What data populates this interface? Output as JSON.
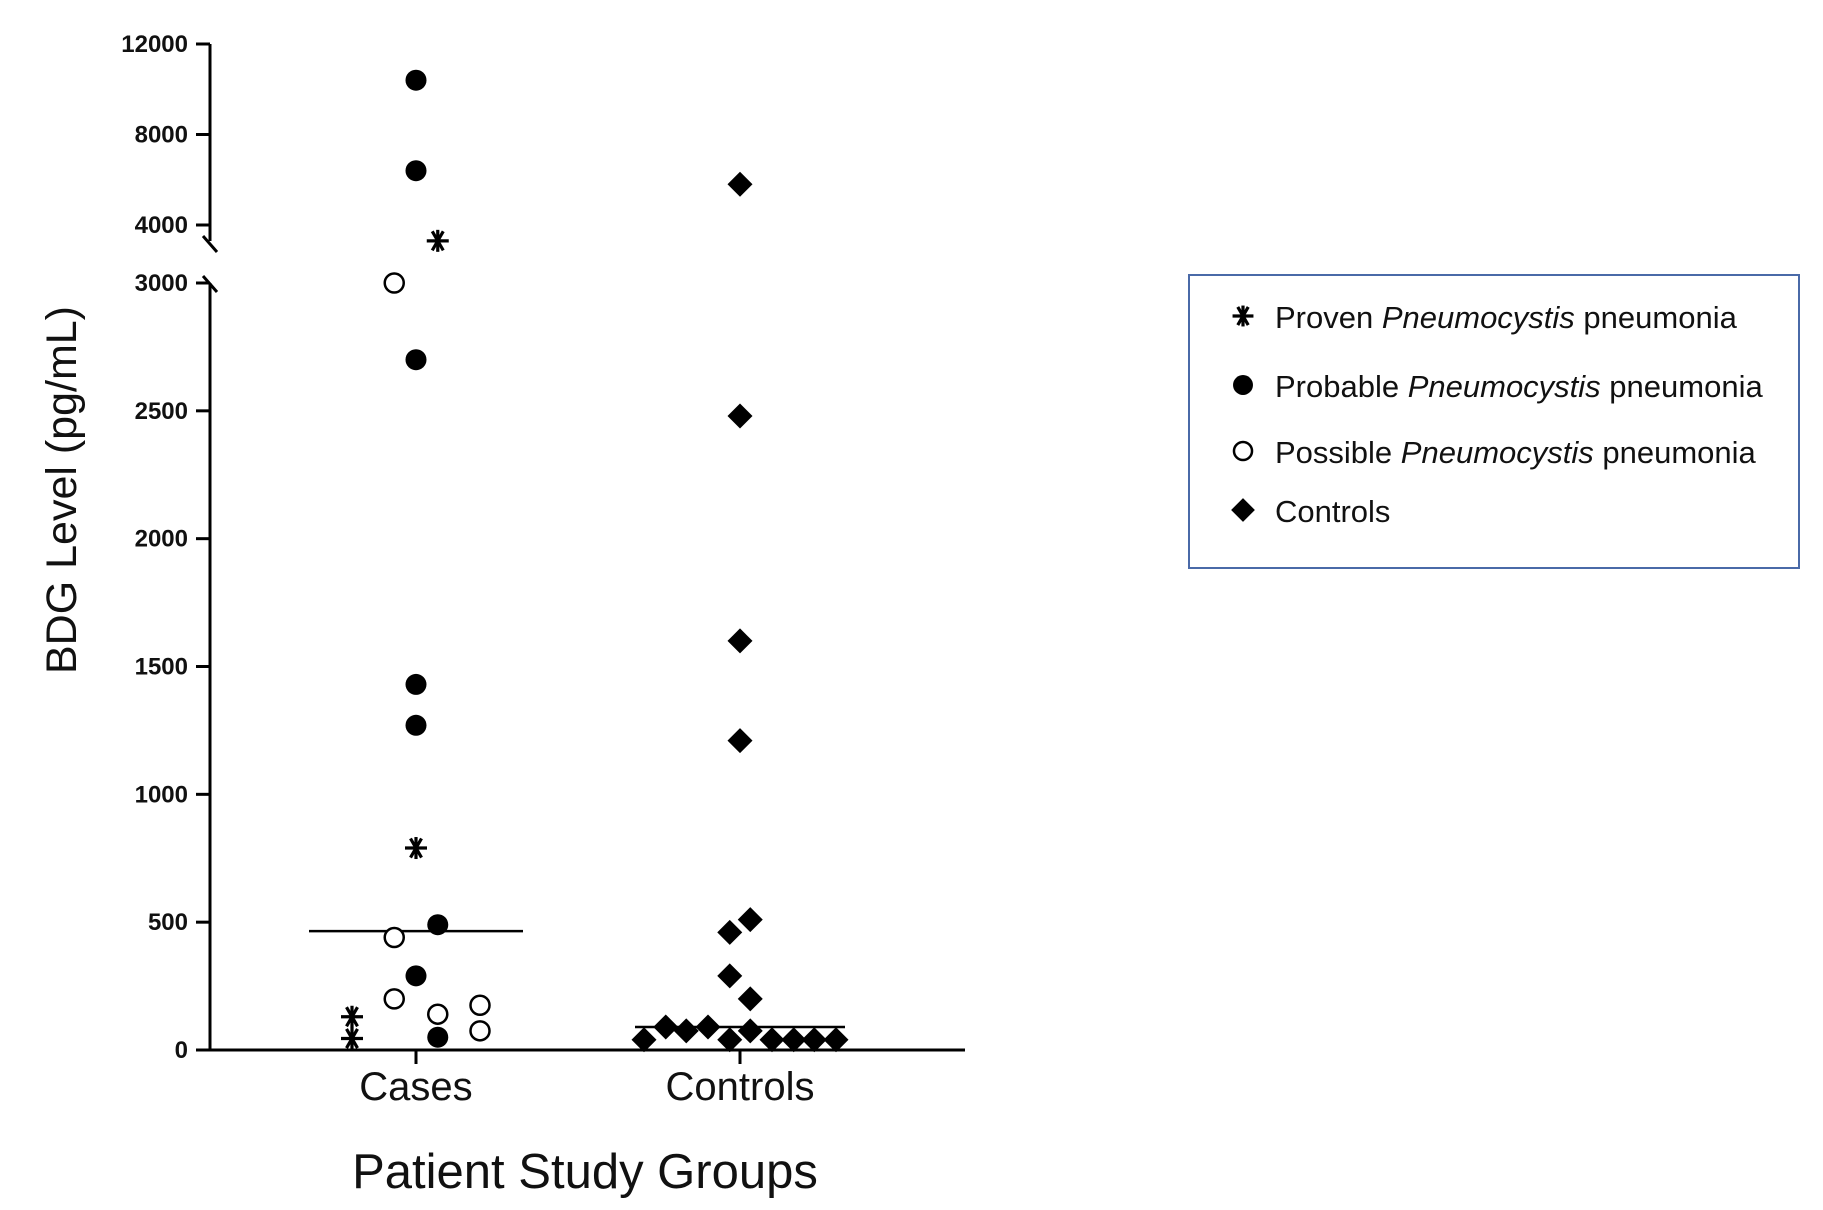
{
  "chart_data": {
    "type": "scatter",
    "title": "",
    "xlabel": "Patient Study Groups",
    "ylabel": "BDG Level (pg/mL)",
    "categories": [
      "Cases",
      "Controls"
    ],
    "y_axis": {
      "broken": true,
      "lower_segment": {
        "range": [
          0,
          3000
        ],
        "ticks": [
          0,
          500,
          1000,
          1500,
          2000,
          2500,
          3000
        ]
      },
      "upper_segment": {
        "range": [
          3500,
          12000
        ],
        "ticks": [
          4000,
          8000,
          12000
        ]
      }
    },
    "grid": false,
    "medians": [
      {
        "category": "Cases",
        "value": 465
      },
      {
        "category": "Controls",
        "value": 90
      }
    ],
    "legend": {
      "position": "right",
      "entries": [
        {
          "marker": "asterisk",
          "prefix": "Proven ",
          "italic": "Pneumocystis",
          "suffix": " pneumonia"
        },
        {
          "marker": "filled-circle",
          "prefix": "Probable ",
          "italic": "Pneumocystis",
          "suffix": " pneumonia"
        },
        {
          "marker": "open-circle",
          "prefix": "Possible ",
          "italic": "Pneumocystis",
          "suffix": " pneumonia"
        },
        {
          "marker": "diamond",
          "prefix": "",
          "italic": "",
          "suffix": "Controls"
        }
      ]
    },
    "series": [
      {
        "name": "Proven Pneumocystis pneumonia",
        "marker": "asterisk",
        "category": "Cases",
        "points": [
          {
            "jitter": -0.5,
            "y": 130
          },
          {
            "jitter": -0.5,
            "y": 45
          },
          {
            "jitter": 0.0,
            "y": 790
          },
          {
            "jitter": 0.17,
            "y": 3300
          }
        ]
      },
      {
        "name": "Probable Pneumocystis pneumonia",
        "marker": "filled-circle",
        "category": "Cases",
        "points": [
          {
            "jitter": 0.0,
            "y": 10400
          },
          {
            "jitter": 0.0,
            "y": 6400
          },
          {
            "jitter": 0.0,
            "y": 2700
          },
          {
            "jitter": 0.0,
            "y": 1430
          },
          {
            "jitter": 0.0,
            "y": 1270
          },
          {
            "jitter": 0.17,
            "y": 490
          },
          {
            "jitter": 0.0,
            "y": 290
          },
          {
            "jitter": 0.17,
            "y": 50
          }
        ]
      },
      {
        "name": "Possible Pneumocystis pneumonia",
        "marker": "open-circle",
        "category": "Cases",
        "points": [
          {
            "jitter": -0.17,
            "y": 3000
          },
          {
            "jitter": -0.17,
            "y": 440
          },
          {
            "jitter": -0.17,
            "y": 200
          },
          {
            "jitter": 0.17,
            "y": 140
          },
          {
            "jitter": 0.5,
            "y": 175
          },
          {
            "jitter": 0.5,
            "y": 75
          }
        ]
      },
      {
        "name": "Controls",
        "marker": "diamond",
        "category": "Controls",
        "points": [
          {
            "jitter": 0.0,
            "y": 5800
          },
          {
            "jitter": 0.0,
            "y": 2480
          },
          {
            "jitter": 0.0,
            "y": 1600
          },
          {
            "jitter": 0.0,
            "y": 1210
          },
          {
            "jitter": 0.08,
            "y": 510
          },
          {
            "jitter": -0.08,
            "y": 460
          },
          {
            "jitter": -0.08,
            "y": 290
          },
          {
            "jitter": 0.08,
            "y": 200
          },
          {
            "jitter": -0.58,
            "y": 90
          },
          {
            "jitter": -0.42,
            "y": 75
          },
          {
            "jitter": -0.25,
            "y": 90
          },
          {
            "jitter": 0.08,
            "y": 75
          },
          {
            "jitter": -0.75,
            "y": 40
          },
          {
            "jitter": -0.08,
            "y": 40
          },
          {
            "jitter": 0.25,
            "y": 40
          },
          {
            "jitter": 0.42,
            "y": 40
          },
          {
            "jitter": 0.58,
            "y": 40
          },
          {
            "jitter": 0.75,
            "y": 40
          }
        ]
      }
    ]
  }
}
